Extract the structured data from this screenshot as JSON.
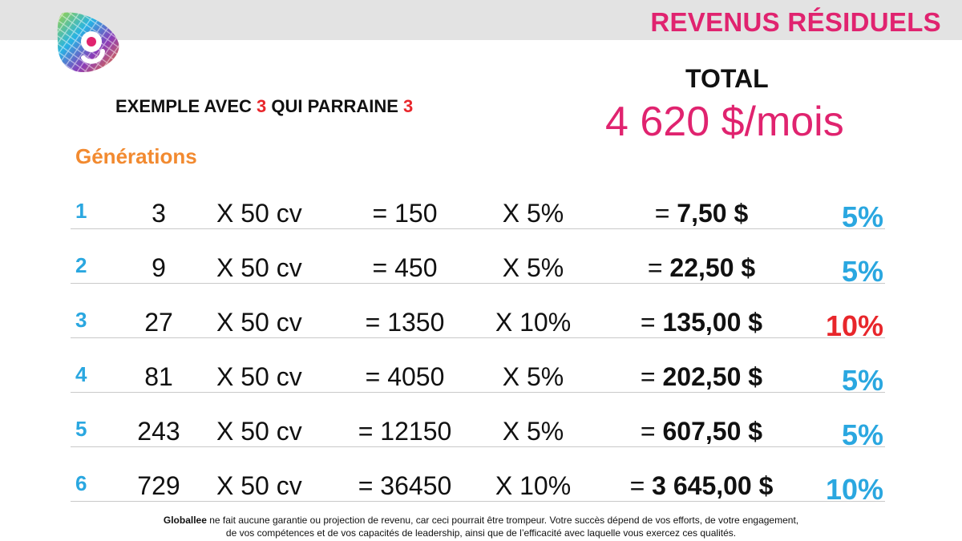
{
  "title": "REVENUS RÉSIDUELS",
  "example": {
    "prefix": "EXEMPLE AVEC ",
    "num1": "3",
    "middle": " QUI PARRAINE ",
    "num2": "3"
  },
  "total": {
    "label": "TOTAL",
    "value": "4 620 $/mois"
  },
  "generations_label": "Générations",
  "colors": {
    "accent": "#e0236f",
    "blue": "#2aa7e0",
    "red": "#e8262b",
    "orange": "#f28a30"
  },
  "rows": [
    {
      "gen": "1",
      "count": "3",
      "mult": "X 50 cv",
      "cv": "= 150",
      "pct": "X 5%",
      "pay_prefix": "= ",
      "pay": "7,50 $",
      "badge": "5%",
      "badge_color": "blue"
    },
    {
      "gen": "2",
      "count": "9",
      "mult": "X 50 cv",
      "cv": "= 450",
      "pct": "X 5%",
      "pay_prefix": "= ",
      "pay": "22,50 $",
      "badge": "5%",
      "badge_color": "blue"
    },
    {
      "gen": "3",
      "count": "27",
      "mult": "X 50 cv",
      "cv": "= 1350",
      "pct": "X 10%",
      "pay_prefix": "= ",
      "pay": "135,00 $",
      "badge": "10%",
      "badge_color": "red"
    },
    {
      "gen": "4",
      "count": "81",
      "mult": "X 50 cv",
      "cv": "= 4050",
      "pct": "X 5%",
      "pay_prefix": "= ",
      "pay": "202,50 $",
      "badge": "5%",
      "badge_color": "blue"
    },
    {
      "gen": "5",
      "count": "243",
      "mult": "X 50 cv",
      "cv": "= 12150",
      "pct": "X 5%",
      "pay_prefix": "= ",
      "pay": "607,50 $",
      "badge": "5%",
      "badge_color": "blue"
    },
    {
      "gen": "6",
      "count": "729",
      "mult": "X 50 cv",
      "cv": "= 36450",
      "pct": "X 10%",
      "pay_prefix": "= ",
      "pay": "3 645,00 $",
      "badge": "10%",
      "badge_color": "blue"
    }
  ],
  "disclaimer": {
    "brand": "Globallee",
    "line1": " ne fait aucune garantie ou projection de revenu, car ceci pourrait être trompeur. Votre succès dépend de vos efforts, de votre engagement,",
    "line2": "de vos compétences et de vos capacités de leadership, ainsi que de l’efficacité avec laquelle vous exercez ces qualités."
  }
}
